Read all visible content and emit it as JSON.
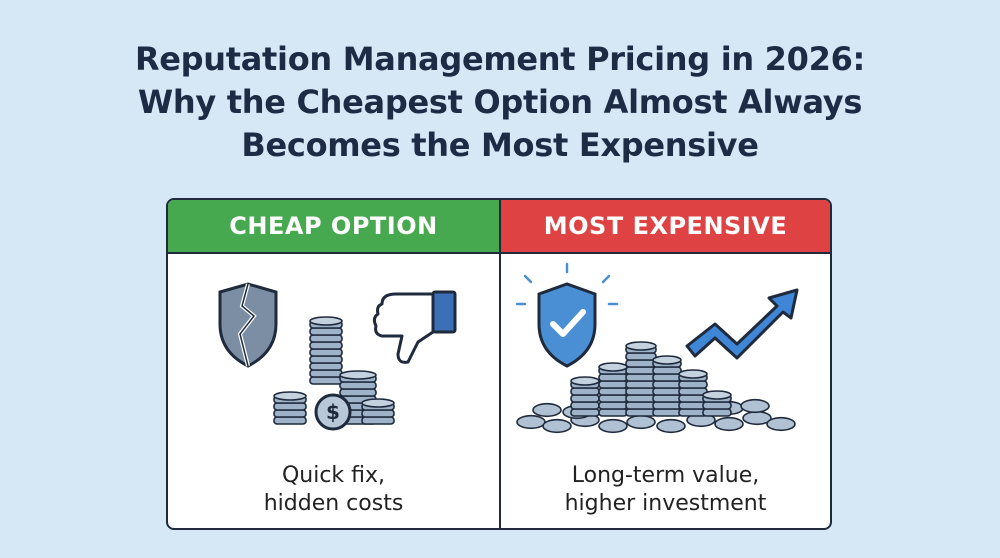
{
  "title": {
    "line1": "Reputation Management Pricing in 2026:",
    "line2": "Why the Cheapest Option Almost Always",
    "line3": "Becomes the Most Expensive"
  },
  "left_panel": {
    "header": "CHEAP OPTION",
    "caption_line1": "Quick fix,",
    "caption_line2": "hidden costs",
    "icons": [
      "broken-shield-icon",
      "thumbs-down-icon",
      "coin-stack-icon",
      "dollar-coin-icon"
    ],
    "header_color": "#47a94f"
  },
  "right_panel": {
    "header": "MOST EXPENSIVE",
    "caption_line1": "Long-term value,",
    "caption_line2": "higher investment",
    "icons": [
      "check-shield-icon",
      "coin-pile-icon",
      "up-trend-arrow-icon"
    ],
    "header_color": "#df4242"
  },
  "colors": {
    "background": "#d6e8f6",
    "title_text": "#1d2b45",
    "coin": "#9fb3c8",
    "shield_blue": "#4a8fd4",
    "arrow_blue": "#3f86d6"
  }
}
